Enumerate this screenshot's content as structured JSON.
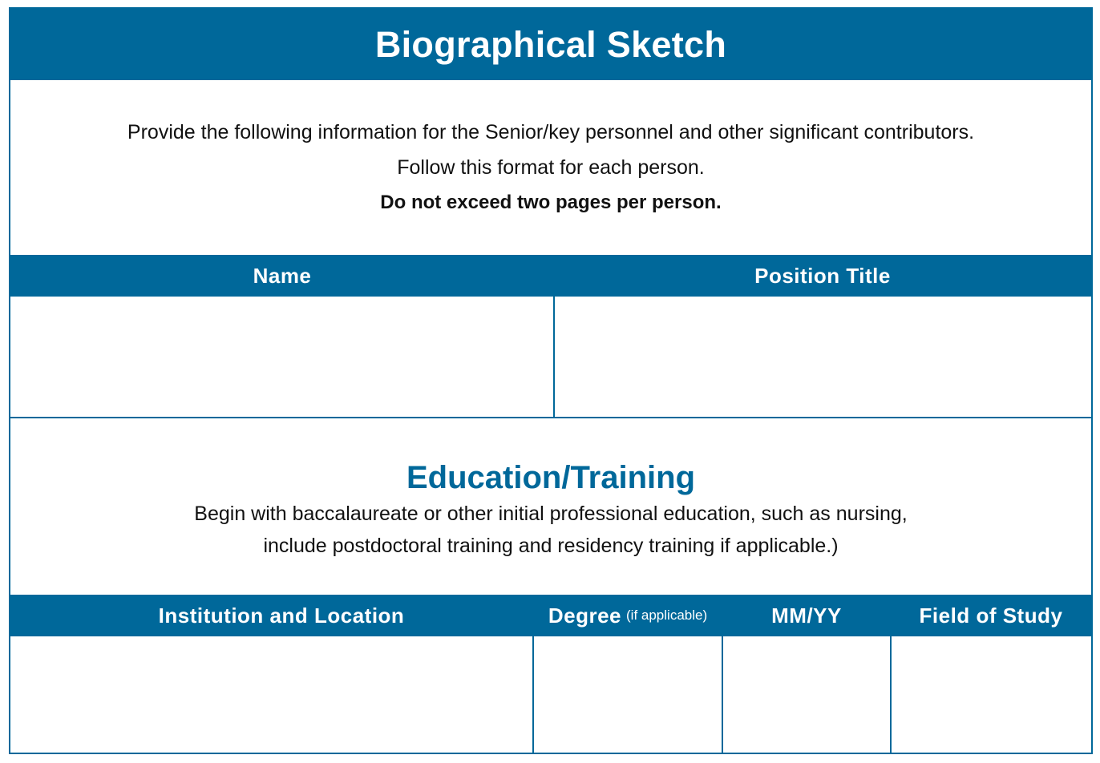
{
  "title": "Biographical Sketch",
  "intro": {
    "line1": "Provide the following information for the Senior/key personnel and other significant contributors.",
    "line2": "Follow this format for each person.",
    "line3": "Do not exceed two pages per person."
  },
  "person_table": {
    "headers": {
      "name": "Name",
      "position_title": "Position Title"
    },
    "values": {
      "name": "",
      "position_title": ""
    }
  },
  "education": {
    "title": "Education/Training",
    "desc_line1": "Begin with baccalaureate or other initial professional education, such as nursing,",
    "desc_line2": "include postdoctoral training and residency training if applicable.)"
  },
  "education_table": {
    "headers": {
      "institution": "Institution and Location",
      "degree": "Degree",
      "degree_note": "(if applicable)",
      "date": "MM/YY",
      "field": "Field of Study"
    },
    "rows": [
      {
        "institution": "",
        "degree": "",
        "date": "",
        "field": ""
      }
    ]
  },
  "colors": {
    "brand_blue": "#00689a",
    "text": "#111111",
    "background": "#ffffff"
  }
}
